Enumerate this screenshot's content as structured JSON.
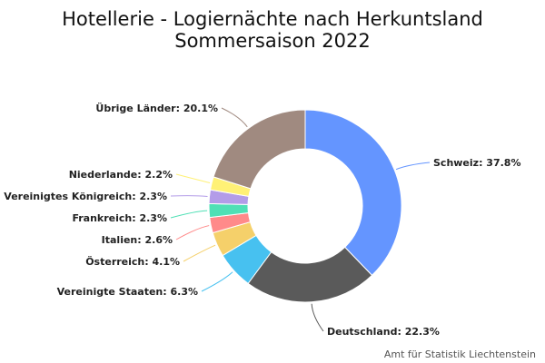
{
  "chart_data": {
    "type": "pie",
    "donut": true,
    "title": "Hotellerie - Logiernächte nach Herkuntsland",
    "subtitle": "Sommersaison 2022",
    "credit": "Amt für Statistik Liechtenstein",
    "slices": [
      {
        "name": "Schweiz",
        "value": 37.8,
        "color": "#6495ff",
        "label": "Schweiz: 37.8%"
      },
      {
        "name": "Deutschland",
        "value": 22.3,
        "color": "#5a5a5a",
        "label": "Deutschland: 22.3%"
      },
      {
        "name": "Vereinigte Staaten",
        "value": 6.3,
        "color": "#47c1f0",
        "label": "Vereinigte Staaten: 6.3%"
      },
      {
        "name": "Österreich",
        "value": 4.1,
        "color": "#f5d06a",
        "label": "Österreich: 4.1%"
      },
      {
        "name": "Italien",
        "value": 2.6,
        "color": "#ff8a8a",
        "label": "Italien: 2.6%"
      },
      {
        "name": "Frankreich",
        "value": 2.3,
        "color": "#4fe0b5",
        "label": "Frankreich: 2.3%"
      },
      {
        "name": "Vereinigtes Königreich",
        "value": 2.3,
        "color": "#b39ce8",
        "label": "Vereinigtes Königreich: 2.3%"
      },
      {
        "name": "Niederlande",
        "value": 2.2,
        "color": "#fff176",
        "label": "Niederlande: 2.2%"
      },
      {
        "name": "Übrige Länder",
        "value": 20.1,
        "color": "#a08a80",
        "label": "Übrige Länder: 20.1%"
      }
    ]
  }
}
